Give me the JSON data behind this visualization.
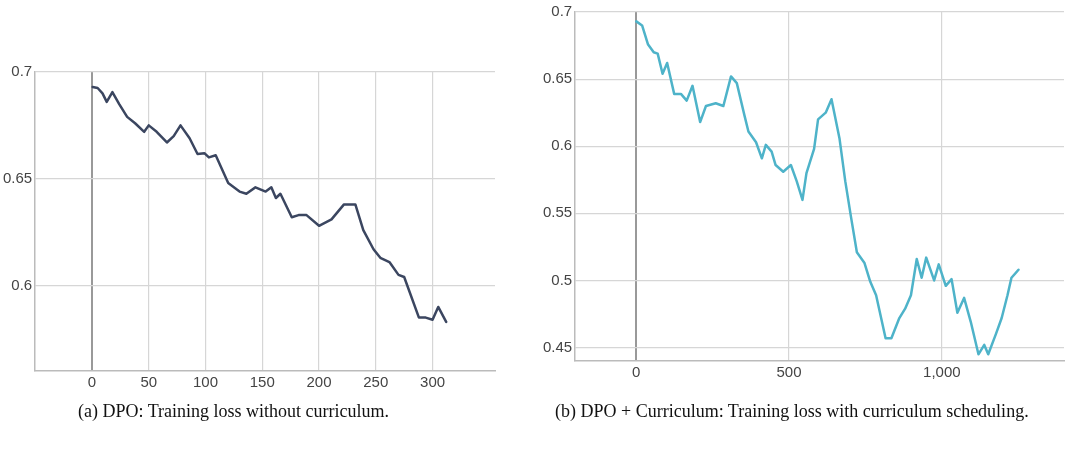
{
  "chart_data": [
    {
      "type": "line",
      "xlim": [
        -50,
        355
      ],
      "xticks": [
        0,
        50,
        100,
        150,
        200,
        250,
        300
      ],
      "ylim": [
        0.56,
        0.7
      ],
      "yticks": [
        0.6,
        0.65,
        0.7
      ],
      "grid": true,
      "marker": "none",
      "line_style": "solid",
      "annotations": [
        "(a) DPO: Training loss without curriculum."
      ],
      "series": [
        {
          "color": "#3b4660",
          "x": [
            0.6,
            5,
            9.3,
            13,
            18,
            24,
            31,
            38,
            46,
            50,
            57,
            66,
            72,
            78,
            86,
            93,
            99,
            103,
            109,
            120,
            130,
            136,
            144,
            153,
            158,
            162,
            166,
            176,
            182,
            189,
            200,
            211,
            222,
            232,
            239,
            248,
            254,
            262,
            270,
            275,
            288,
            294,
            300,
            305,
            312
          ],
          "values": [
            0.693,
            0.6925,
            0.69,
            0.686,
            0.6906,
            0.685,
            0.679,
            0.676,
            0.672,
            0.675,
            0.672,
            0.667,
            0.67,
            0.675,
            0.669,
            0.6616,
            0.662,
            0.66,
            0.661,
            0.648,
            0.644,
            0.643,
            0.646,
            0.644,
            0.646,
            0.641,
            0.643,
            0.632,
            0.633,
            0.633,
            0.628,
            0.631,
            0.638,
            0.638,
            0.626,
            0.617,
            0.613,
            0.611,
            0.605,
            0.604,
            0.585,
            0.585,
            0.584,
            0.59,
            0.583
          ]
        }
      ]
    },
    {
      "type": "line",
      "xlim": [
        -200,
        1400
      ],
      "xticks": [
        0,
        500,
        {
          "value": 1000,
          "label": "1,000"
        }
      ],
      "ylim": [
        0.44,
        0.7
      ],
      "yticks": [
        0.45,
        0.5,
        0.55,
        0.6,
        0.65,
        0.7
      ],
      "grid": true,
      "marker": "none",
      "line_style": "solid",
      "annotations": [
        "(b) DPO + Curriculum: Training loss with curriculum scheduling."
      ],
      "series": [
        {
          "color": "#4eb3c9",
          "x": [
            0,
            19,
            38,
            57,
            70,
            86,
            101,
            124,
            146,
            165,
            184,
            209,
            228,
            260,
            285,
            310,
            329,
            354,
            367,
            392,
            411,
            424,
            443,
            456,
            481,
            506,
            525,
            544,
            557,
            582,
            595,
            620,
            639,
            665,
            684,
            703,
            722,
            747,
            766,
            785,
            816,
            835,
            861,
            880,
            899,
            918,
            934,
            949,
            975,
            990,
            1013,
            1032,
            1051,
            1073,
            1095,
            1120,
            1139,
            1152,
            1177,
            1196,
            1215,
            1228,
            1251
          ],
          "values": [
            0.693,
            0.69,
            0.676,
            0.67,
            0.669,
            0.654,
            0.662,
            0.639,
            0.639,
            0.634,
            0.645,
            0.618,
            0.63,
            0.632,
            0.63,
            0.652,
            0.647,
            0.623,
            0.611,
            0.603,
            0.591,
            0.601,
            0.596,
            0.586,
            0.581,
            0.586,
            0.574,
            0.56,
            0.58,
            0.598,
            0.62,
            0.625,
            0.635,
            0.606,
            0.574,
            0.547,
            0.521,
            0.513,
            0.499,
            0.489,
            0.457,
            0.457,
            0.472,
            0.479,
            0.489,
            0.516,
            0.502,
            0.517,
            0.5,
            0.512,
            0.496,
            0.501,
            0.476,
            0.487,
            0.469,
            0.445,
            0.452,
            0.445,
            0.46,
            0.472,
            0.489,
            0.502,
            0.508
          ]
        }
      ]
    }
  ]
}
